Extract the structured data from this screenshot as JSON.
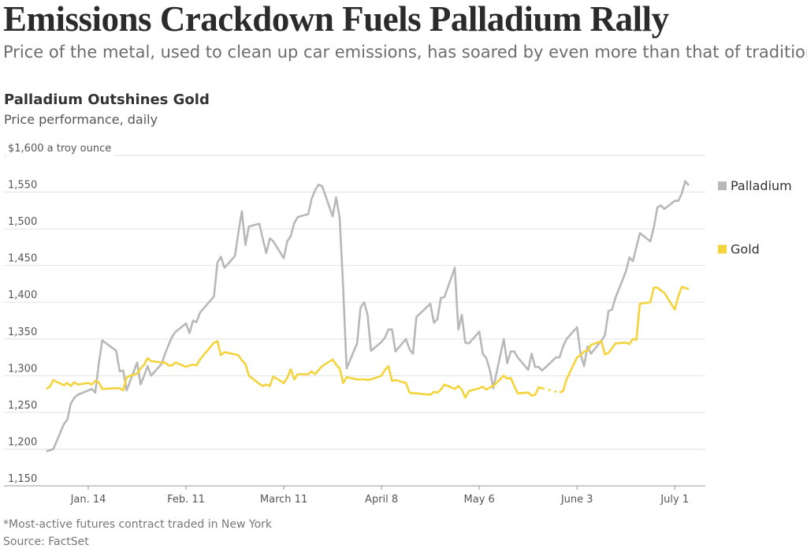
{
  "header": {
    "title": "Emissions Crackdown Fuels Palladium Rally",
    "subtitle": "Price of the metal, used to clean up car emissions, has soared by even more than that of traditional haven"
  },
  "footer": {
    "note": "*Most-active futures contract traded in New York",
    "source": "Source: FactSet"
  },
  "chart_data": {
    "type": "line",
    "title": "Palladium Outshines Gold",
    "subtitle": "Price performance, daily",
    "ylabel": "$1,600 a troy ounce",
    "ylim": [
      1150,
      1600
    ],
    "yticks": [
      1150,
      1200,
      1250,
      1300,
      1350,
      1400,
      1450,
      1500,
      1550,
      1600
    ],
    "ytick_labels": [
      "1,150",
      "1,200",
      "1,250",
      "1,300",
      "1,350",
      "1,400",
      "1,450",
      "1,500",
      "1,550",
      "$1,600 a troy ounce"
    ],
    "xticks": [
      "2019-01-14",
      "2019-02-11",
      "2019-03-11",
      "2019-04-08",
      "2019-05-06",
      "2019-06-03",
      "2019-07-01"
    ],
    "xtick_labels": [
      "Jan. 14",
      "Feb. 11",
      "March 11",
      "April 8",
      "May 6",
      "June 3",
      "July 1"
    ],
    "grid": true,
    "legend_placement": "right, at line ends",
    "series": [
      {
        "name": "Palladium",
        "color": "#b8b8b8",
        "points": [
          [
            "2019-01-02",
            1197
          ],
          [
            "2019-01-04",
            1200
          ],
          [
            "2019-01-07",
            1234
          ],
          [
            "2019-01-08",
            1240
          ],
          [
            "2019-01-09",
            1262
          ],
          [
            "2019-01-10",
            1270
          ],
          [
            "2019-01-11",
            1274
          ],
          [
            "2019-01-14",
            1280
          ],
          [
            "2019-01-15",
            1282
          ],
          [
            "2019-01-16",
            1277
          ],
          [
            "2019-01-17",
            1316
          ],
          [
            "2019-01-18",
            1348
          ],
          [
            "2019-01-22",
            1334
          ],
          [
            "2019-01-23",
            1306
          ],
          [
            "2019-01-24",
            1307
          ],
          [
            "2019-01-25",
            1280
          ],
          [
            "2019-01-28",
            1318
          ],
          [
            "2019-01-29",
            1288
          ],
          [
            "2019-01-30",
            1300
          ],
          [
            "2019-01-31",
            1313
          ],
          [
            "2019-02-01",
            1300
          ],
          [
            "2019-02-04",
            1316
          ],
          [
            "2019-02-05",
            1330
          ],
          [
            "2019-02-06",
            1342
          ],
          [
            "2019-02-07",
            1353
          ],
          [
            "2019-02-08",
            1360
          ],
          [
            "2019-02-11",
            1371
          ],
          [
            "2019-02-12",
            1358
          ],
          [
            "2019-02-13",
            1375
          ],
          [
            "2019-02-14",
            1373
          ],
          [
            "2019-02-15",
            1386
          ],
          [
            "2019-02-19",
            1408
          ],
          [
            "2019-02-20",
            1454
          ],
          [
            "2019-02-21",
            1462
          ],
          [
            "2019-02-22",
            1447
          ],
          [
            "2019-02-25",
            1463
          ],
          [
            "2019-02-26",
            1495
          ],
          [
            "2019-02-27",
            1524
          ],
          [
            "2019-02-28",
            1478
          ],
          [
            "2019-03-01",
            1503
          ],
          [
            "2019-03-04",
            1507
          ],
          [
            "2019-03-05",
            1486
          ],
          [
            "2019-03-06",
            1467
          ],
          [
            "2019-03-07",
            1487
          ],
          [
            "2019-03-08",
            1483
          ],
          [
            "2019-03-11",
            1460
          ],
          [
            "2019-03-12",
            1483
          ],
          [
            "2019-03-13",
            1490
          ],
          [
            "2019-03-14",
            1508
          ],
          [
            "2019-03-15",
            1516
          ],
          [
            "2019-03-18",
            1520
          ],
          [
            "2019-03-19",
            1541
          ],
          [
            "2019-03-20",
            1553
          ],
          [
            "2019-03-21",
            1560
          ],
          [
            "2019-03-22",
            1558
          ],
          [
            "2019-03-25",
            1517
          ],
          [
            "2019-03-26",
            1543
          ],
          [
            "2019-03-27",
            1515
          ],
          [
            "2019-03-28",
            1420
          ],
          [
            "2019-03-29",
            1310
          ],
          [
            "2019-04-01",
            1344
          ],
          [
            "2019-04-02",
            1393
          ],
          [
            "2019-04-03",
            1400
          ],
          [
            "2019-04-04",
            1383
          ],
          [
            "2019-04-05",
            1334
          ],
          [
            "2019-04-08",
            1346
          ],
          [
            "2019-04-09",
            1352
          ],
          [
            "2019-04-10",
            1363
          ],
          [
            "2019-04-11",
            1363
          ],
          [
            "2019-04-12",
            1333
          ],
          [
            "2019-04-15",
            1350
          ],
          [
            "2019-04-16",
            1336
          ],
          [
            "2019-04-17",
            1330
          ],
          [
            "2019-04-18",
            1380
          ],
          [
            "2019-04-22",
            1398
          ],
          [
            "2019-04-23",
            1372
          ],
          [
            "2019-04-24",
            1377
          ],
          [
            "2019-04-25",
            1406
          ],
          [
            "2019-04-26",
            1407
          ],
          [
            "2019-04-29",
            1447
          ],
          [
            "2019-04-30",
            1363
          ],
          [
            "2019-05-01",
            1383
          ],
          [
            "2019-05-02",
            1345
          ],
          [
            "2019-05-03",
            1344
          ],
          [
            "2019-05-06",
            1360
          ],
          [
            "2019-05-07",
            1330
          ],
          [
            "2019-05-08",
            1324
          ],
          [
            "2019-05-09",
            1308
          ],
          [
            "2019-05-10",
            1283
          ],
          [
            "2019-05-13",
            1350
          ],
          [
            "2019-05-14",
            1317
          ],
          [
            "2019-05-15",
            1333
          ],
          [
            "2019-05-16",
            1333
          ],
          [
            "2019-05-17",
            1325
          ],
          [
            "2019-05-20",
            1308
          ],
          [
            "2019-05-21",
            1330
          ],
          [
            "2019-05-22",
            1312
          ],
          [
            "2019-05-23",
            1312
          ],
          [
            "2019-05-24",
            1307
          ],
          [
            "2019-05-28",
            1325
          ],
          [
            "2019-05-29",
            1325
          ],
          [
            "2019-05-30",
            1340
          ],
          [
            "2019-05-31",
            1350
          ],
          [
            "2019-06-03",
            1366
          ],
          [
            "2019-06-04",
            1330
          ],
          [
            "2019-06-05",
            1313
          ],
          [
            "2019-06-06",
            1340
          ],
          [
            "2019-06-07",
            1330
          ],
          [
            "2019-06-10",
            1348
          ],
          [
            "2019-06-11",
            1355
          ],
          [
            "2019-06-12",
            1388
          ],
          [
            "2019-06-13",
            1390
          ],
          [
            "2019-06-14",
            1406
          ],
          [
            "2019-06-17",
            1442
          ],
          [
            "2019-06-18",
            1461
          ],
          [
            "2019-06-19",
            1456
          ],
          [
            "2019-06-20",
            1475
          ],
          [
            "2019-06-21",
            1494
          ],
          [
            "2019-06-24",
            1483
          ],
          [
            "2019-06-25",
            1502
          ],
          [
            "2019-06-26",
            1529
          ],
          [
            "2019-06-27",
            1532
          ],
          [
            "2019-06-28",
            1527
          ],
          [
            "2019-07-01",
            1538
          ],
          [
            "2019-07-02",
            1538
          ],
          [
            "2019-07-03",
            1548
          ],
          [
            "2019-07-04",
            1565
          ],
          [
            "2019-07-05",
            1559
          ]
        ]
      },
      {
        "name": "Gold",
        "color": "#f5d33a",
        "points": [
          [
            "2019-01-02",
            1282
          ],
          [
            "2019-01-03",
            1285
          ],
          [
            "2019-01-04",
            1294
          ],
          [
            "2019-01-07",
            1287
          ],
          [
            "2019-01-08",
            1290
          ],
          [
            "2019-01-09",
            1286
          ],
          [
            "2019-01-10",
            1291
          ],
          [
            "2019-01-11",
            1288
          ],
          [
            "2019-01-14",
            1290
          ],
          [
            "2019-01-15",
            1288
          ],
          [
            "2019-01-16",
            1293
          ],
          [
            "2019-01-17",
            1291
          ],
          [
            "2019-01-18",
            1282
          ],
          [
            "2019-01-22",
            1283
          ],
          [
            "2019-01-23",
            1283
          ],
          [
            "2019-01-24",
            1280
          ],
          [
            "2019-01-25",
            1298
          ],
          [
            "2019-01-28",
            1303
          ],
          [
            "2019-01-29",
            1310
          ],
          [
            "2019-01-30",
            1315
          ],
          [
            "2019-01-31",
            1324
          ],
          [
            "2019-02-01",
            1320
          ],
          [
            "2019-02-04",
            1318
          ],
          [
            "2019-02-05",
            1318
          ],
          [
            "2019-02-06",
            1314
          ],
          [
            "2019-02-07",
            1314
          ],
          [
            "2019-02-08",
            1318
          ],
          [
            "2019-02-11",
            1312
          ],
          [
            "2019-02-12",
            1314
          ],
          [
            "2019-02-13",
            1315
          ],
          [
            "2019-02-14",
            1314
          ],
          [
            "2019-02-15",
            1322
          ],
          [
            "2019-02-19",
            1345
          ],
          [
            "2019-02-20",
            1347
          ],
          [
            "2019-02-21",
            1328
          ],
          [
            "2019-02-22",
            1332
          ],
          [
            "2019-02-25",
            1329
          ],
          [
            "2019-02-26",
            1328
          ],
          [
            "2019-02-27",
            1321
          ],
          [
            "2019-02-28",
            1316
          ],
          [
            "2019-03-01",
            1300
          ],
          [
            "2019-03-04",
            1289
          ],
          [
            "2019-03-05",
            1286
          ],
          [
            "2019-03-06",
            1288
          ],
          [
            "2019-03-07",
            1286
          ],
          [
            "2019-03-08",
            1299
          ],
          [
            "2019-03-11",
            1290
          ],
          [
            "2019-03-12",
            1297
          ],
          [
            "2019-03-13",
            1309
          ],
          [
            "2019-03-14",
            1295
          ],
          [
            "2019-03-15",
            1302
          ],
          [
            "2019-03-18",
            1302
          ],
          [
            "2019-03-19",
            1306
          ],
          [
            "2019-03-20",
            1302
          ],
          [
            "2019-03-21",
            1308
          ],
          [
            "2019-03-22",
            1313
          ],
          [
            "2019-03-25",
            1322
          ],
          [
            "2019-03-26",
            1315
          ],
          [
            "2019-03-27",
            1310
          ],
          [
            "2019-03-28",
            1290
          ],
          [
            "2019-03-29",
            1298
          ],
          [
            "2019-04-01",
            1295
          ],
          [
            "2019-04-02",
            1295
          ],
          [
            "2019-04-03",
            1295
          ],
          [
            "2019-04-04",
            1294
          ],
          [
            "2019-04-05",
            1295
          ],
          [
            "2019-04-08",
            1300
          ],
          [
            "2019-04-09",
            1308
          ],
          [
            "2019-04-10",
            1313
          ],
          [
            "2019-04-11",
            1293
          ],
          [
            "2019-04-12",
            1294
          ],
          [
            "2019-04-15",
            1290
          ],
          [
            "2019-04-16",
            1277
          ],
          [
            "2019-04-17",
            1276
          ],
          [
            "2019-04-18",
            1276
          ],
          [
            "2019-04-22",
            1274
          ],
          [
            "2019-04-23",
            1278
          ],
          [
            "2019-04-24",
            1277
          ],
          [
            "2019-04-25",
            1281
          ],
          [
            "2019-04-26",
            1288
          ],
          [
            "2019-04-29",
            1282
          ],
          [
            "2019-04-30",
            1286
          ],
          [
            "2019-05-01",
            1281
          ],
          [
            "2019-05-02",
            1270
          ],
          [
            "2019-05-03",
            1279
          ],
          [
            "2019-05-06",
            1283
          ],
          [
            "2019-05-07",
            1285
          ],
          [
            "2019-05-08",
            1281
          ],
          [
            "2019-05-09",
            1284
          ],
          [
            "2019-05-10",
            1286
          ],
          [
            "2019-05-13",
            1300
          ],
          [
            "2019-05-14",
            1296
          ],
          [
            "2019-05-15",
            1297
          ],
          [
            "2019-05-16",
            1286
          ],
          [
            "2019-05-17",
            1276
          ],
          [
            "2019-05-20",
            1277
          ],
          [
            "2019-05-21",
            1273
          ],
          [
            "2019-05-22",
            1274
          ],
          [
            "2019-05-23",
            1284
          ],
          [
            "2019-05-24",
            1283
          ],
          [
            "2019-05-28",
            null
          ],
          [
            "2019-05-29",
            1277
          ],
          [
            "2019-05-30",
            1279
          ],
          [
            "2019-05-31",
            1295
          ],
          [
            "2019-06-03",
            1325
          ],
          [
            "2019-06-04",
            1328
          ],
          [
            "2019-06-05",
            1333
          ],
          [
            "2019-06-06",
            1334
          ],
          [
            "2019-06-07",
            1342
          ],
          [
            "2019-06-10",
            1347
          ],
          [
            "2019-06-11",
            1329
          ],
          [
            "2019-06-12",
            1331
          ],
          [
            "2019-06-13",
            1337
          ],
          [
            "2019-06-14",
            1344
          ],
          [
            "2019-06-17",
            1345
          ],
          [
            "2019-06-18",
            1343
          ],
          [
            "2019-06-19",
            1350
          ],
          [
            "2019-06-20",
            1349
          ],
          [
            "2019-06-21",
            1398
          ],
          [
            "2019-06-24",
            1400
          ],
          [
            "2019-06-25",
            1420
          ],
          [
            "2019-06-26",
            1420
          ],
          [
            "2019-06-27",
            1416
          ],
          [
            "2019-06-28",
            1413
          ],
          [
            "2019-07-01",
            1390
          ],
          [
            "2019-07-02",
            1408
          ],
          [
            "2019-07-03",
            1421
          ],
          [
            "2019-07-05",
            1418
          ]
        ]
      }
    ]
  }
}
